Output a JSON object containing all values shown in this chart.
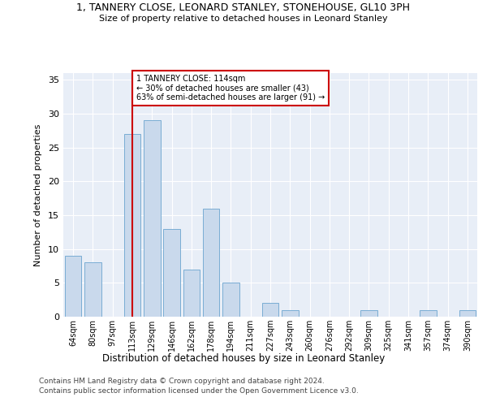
{
  "title": "1, TANNERY CLOSE, LEONARD STANLEY, STONEHOUSE, GL10 3PH",
  "subtitle": "Size of property relative to detached houses in Leonard Stanley",
  "xlabel": "Distribution of detached houses by size in Leonard Stanley",
  "ylabel": "Number of detached properties",
  "bar_color": "#c9d9ec",
  "bar_edge_color": "#7aadd4",
  "bg_color": "#e8eef7",
  "categories": [
    "64sqm",
    "80sqm",
    "97sqm",
    "113sqm",
    "129sqm",
    "146sqm",
    "162sqm",
    "178sqm",
    "194sqm",
    "211sqm",
    "227sqm",
    "243sqm",
    "260sqm",
    "276sqm",
    "292sqm",
    "309sqm",
    "325sqm",
    "341sqm",
    "357sqm",
    "374sqm",
    "390sqm"
  ],
  "values": [
    9,
    8,
    0,
    27,
    29,
    13,
    7,
    16,
    5,
    0,
    2,
    1,
    0,
    0,
    0,
    1,
    0,
    0,
    1,
    0,
    1
  ],
  "vline_x": 3,
  "vline_color": "#cc0000",
  "annotation_text": "1 TANNERY CLOSE: 114sqm\n← 30% of detached houses are smaller (43)\n63% of semi-detached houses are larger (91) →",
  "annotation_box_color": "#ffffff",
  "annotation_box_edge": "#cc0000",
  "ylim": [
    0,
    36
  ],
  "yticks": [
    0,
    5,
    10,
    15,
    20,
    25,
    30,
    35
  ],
  "footer1": "Contains HM Land Registry data © Crown copyright and database right 2024.",
  "footer2": "Contains public sector information licensed under the Open Government Licence v3.0."
}
